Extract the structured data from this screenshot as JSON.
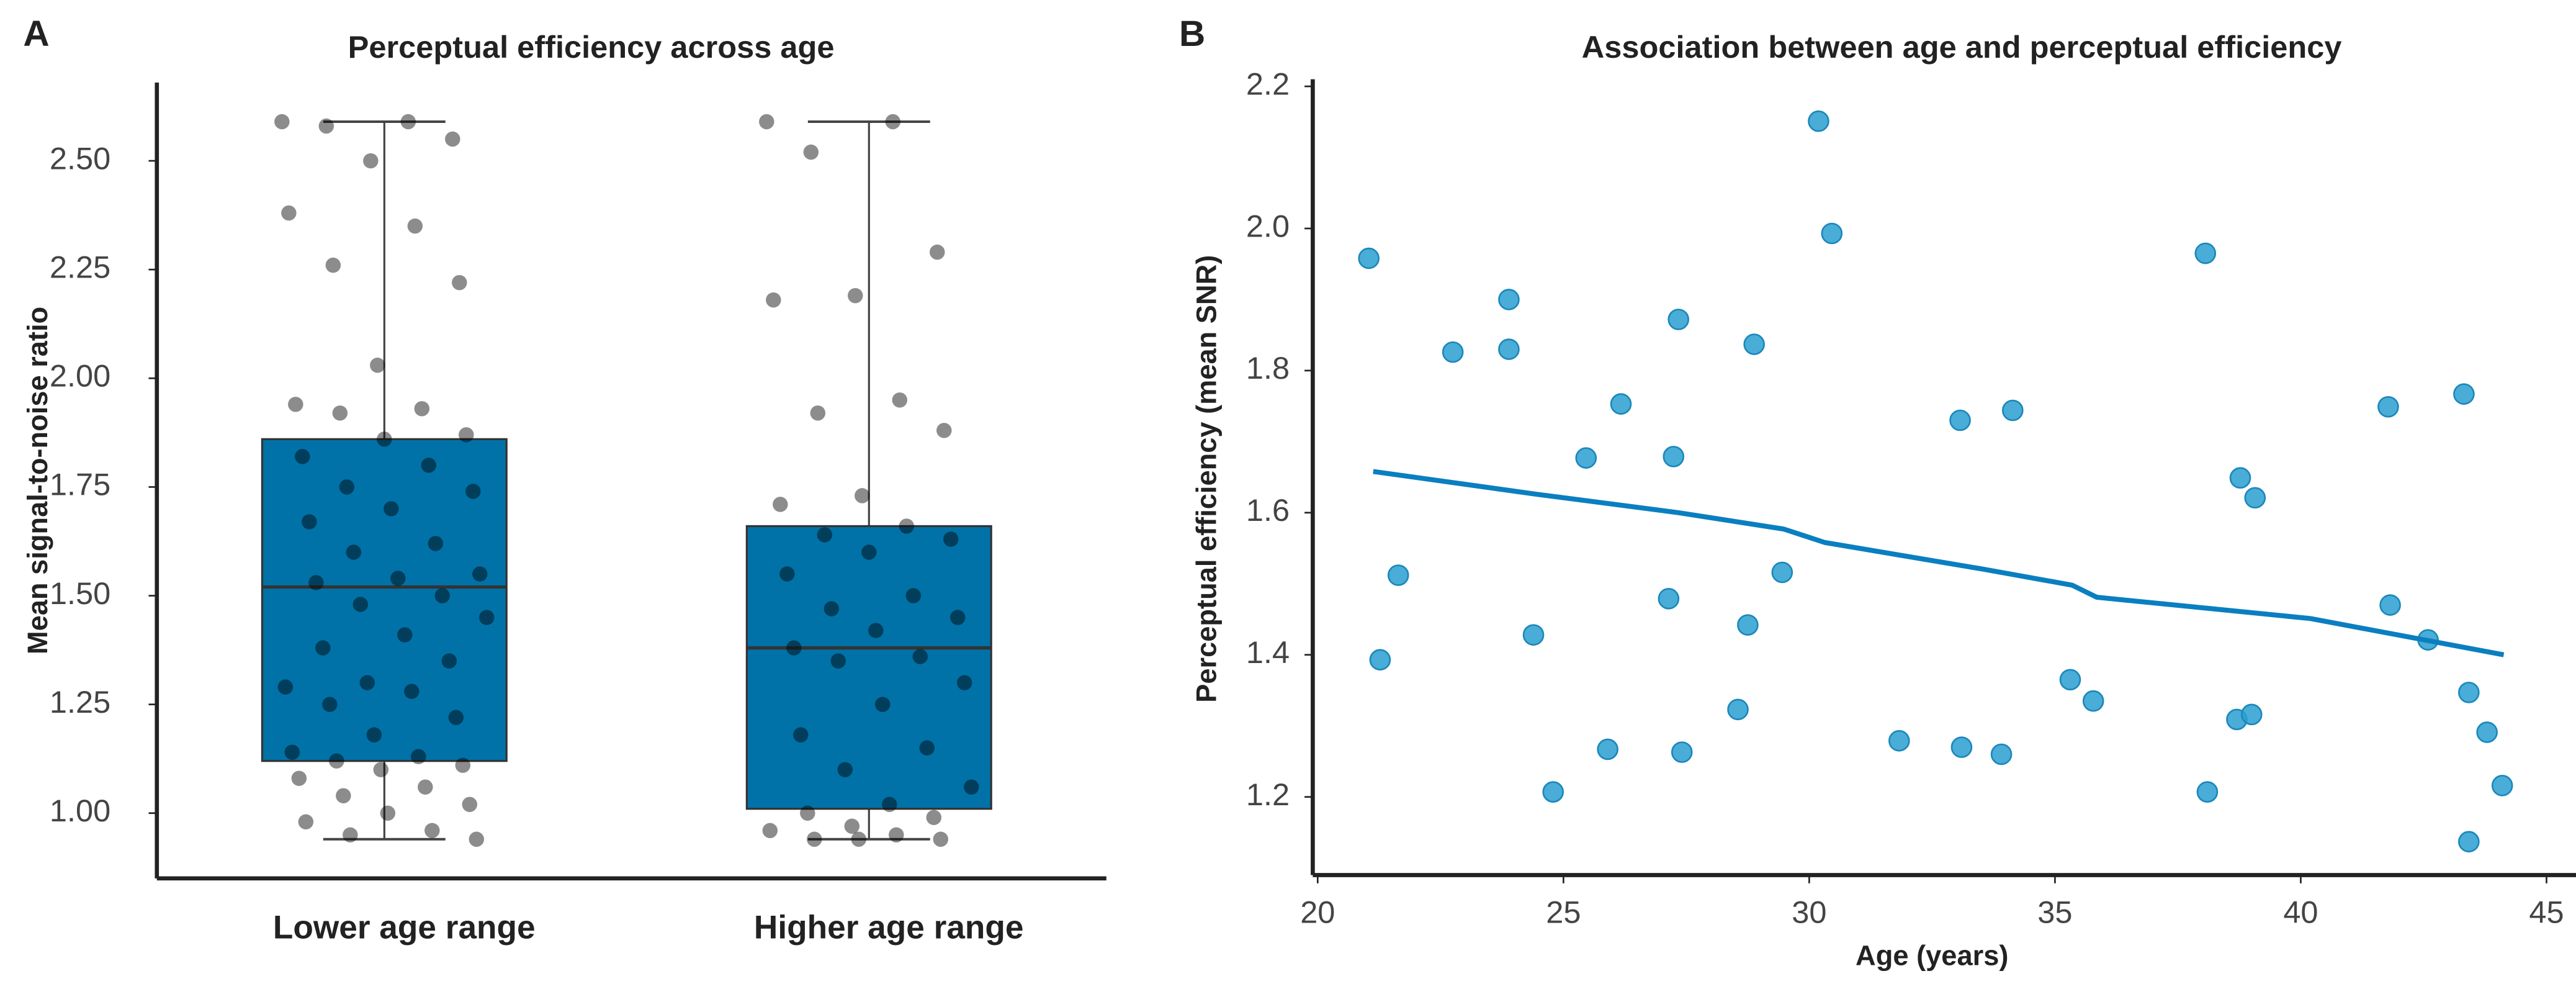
{
  "chart_data": [
    {
      "type": "box",
      "panel_label": "A",
      "title": "Perceptual efficiency across age",
      "ylabel": "Mean signal-to-noise ratio",
      "categories": [
        "Lower age range",
        "Higher age range"
      ],
      "color": "#0072a8",
      "point_color": "#000000",
      "boxes": [
        {
          "whisker_low": 0.94,
          "q1": 1.12,
          "median": 1.52,
          "q3": 1.86,
          "whisker_high": 2.59
        },
        {
          "whisker_low": 0.94,
          "q1": 1.01,
          "median": 1.38,
          "q3": 1.66,
          "whisker_high": 2.59
        }
      ],
      "points": [
        [
          2.59,
          2.59,
          2.58,
          2.55,
          2.5,
          2.38,
          2.35,
          2.26,
          2.22,
          2.03,
          1.94,
          1.93,
          1.92,
          1.87,
          1.86,
          1.82,
          1.8,
          1.75,
          1.74,
          1.7,
          1.67,
          1.62,
          1.6,
          1.55,
          1.54,
          1.53,
          1.5,
          1.48,
          1.45,
          1.41,
          1.38,
          1.35,
          1.3,
          1.29,
          1.28,
          1.25,
          1.22,
          1.18,
          1.14,
          1.13,
          1.12,
          1.11,
          1.1,
          1.08,
          1.06,
          1.04,
          1.02,
          1.0,
          0.98,
          0.96,
          0.95,
          0.94
        ],
        [
          2.59,
          2.59,
          2.52,
          2.29,
          2.19,
          2.18,
          1.95,
          1.92,
          1.88,
          1.73,
          1.71,
          1.66,
          1.64,
          1.63,
          1.6,
          1.55,
          1.5,
          1.47,
          1.45,
          1.42,
          1.38,
          1.36,
          1.35,
          1.3,
          1.25,
          1.18,
          1.15,
          1.1,
          1.06,
          1.02,
          1.0,
          0.99,
          0.97,
          0.96,
          0.95,
          0.94,
          0.94,
          0.94
        ]
      ],
      "ylim": [
        0.85,
        2.68
      ],
      "yticks": [
        {
          "value": 1,
          "label": "1.00"
        },
        1.25,
        {
          "value": 1.5,
          "label": "1.50"
        },
        1.75,
        {
          "value": 2,
          "label": "2.00"
        },
        2.25,
        {
          "value": 2.5,
          "label": "2.50"
        }
      ],
      "grid": false
    },
    {
      "type": "scatter",
      "panel_label": "B",
      "title": "Association between age and perceptual efficiency",
      "xlabel": "Age (years)",
      "ylabel": "Perceptual efficiency (mean SNR)",
      "series": [
        {
          "color": "#2a9fd0",
          "x": [
            21.04,
            21.27,
            21.64,
            22.75,
            23.89,
            23.89,
            24.39,
            24.79,
            25.46,
            25.9,
            26.17,
            27.14,
            27.24,
            27.34,
            27.41,
            28.55,
            28.75,
            28.88,
            29.45,
            30.19,
            30.46,
            31.83,
            33.07,
            33.1,
            33.91,
            34.14,
            35.31,
            35.78,
            38.06,
            38.1,
            38.7,
            38.77,
            39.0,
            39.07,
            41.78,
            41.82,
            42.59,
            43.32,
            43.42,
            43.42,
            43.79,
            44.1
          ],
          "values": [
            1.958,
            1.393,
            1.512,
            1.826,
            1.9,
            1.83,
            1.428,
            1.207,
            1.677,
            1.267,
            1.753,
            1.479,
            1.679,
            1.872,
            1.263,
            1.323,
            1.442,
            1.837,
            1.516,
            2.151,
            1.993,
            1.279,
            1.73,
            1.27,
            1.26,
            1.744,
            1.365,
            1.335,
            1.965,
            1.207,
            1.309,
            1.649,
            1.316,
            1.621,
            1.749,
            1.47,
            1.421,
            1.767,
            1.347,
            1.137,
            1.291,
            1.216
          ]
        }
      ],
      "fit": {
        "color": "#0a7fc0",
        "x": [
          21.13,
          24.45,
          27.34,
          29.48,
          30.32,
          33.5,
          35.35,
          35.85,
          40.2,
          44.13
        ],
        "values": [
          1.658,
          1.626,
          1.6,
          1.577,
          1.558,
          1.521,
          1.498,
          1.481,
          1.451,
          1.4
        ]
      },
      "xlim": [
        19.9,
        45.6
      ],
      "ylim": [
        1.09,
        2.21
      ],
      "xticks": [
        20,
        25,
        30,
        35,
        40,
        45
      ],
      "yticks": [
        1.2,
        1.4,
        1.6,
        1.8,
        {
          "value": 2,
          "label": "2.0"
        },
        2.2
      ],
      "grid": false
    }
  ]
}
